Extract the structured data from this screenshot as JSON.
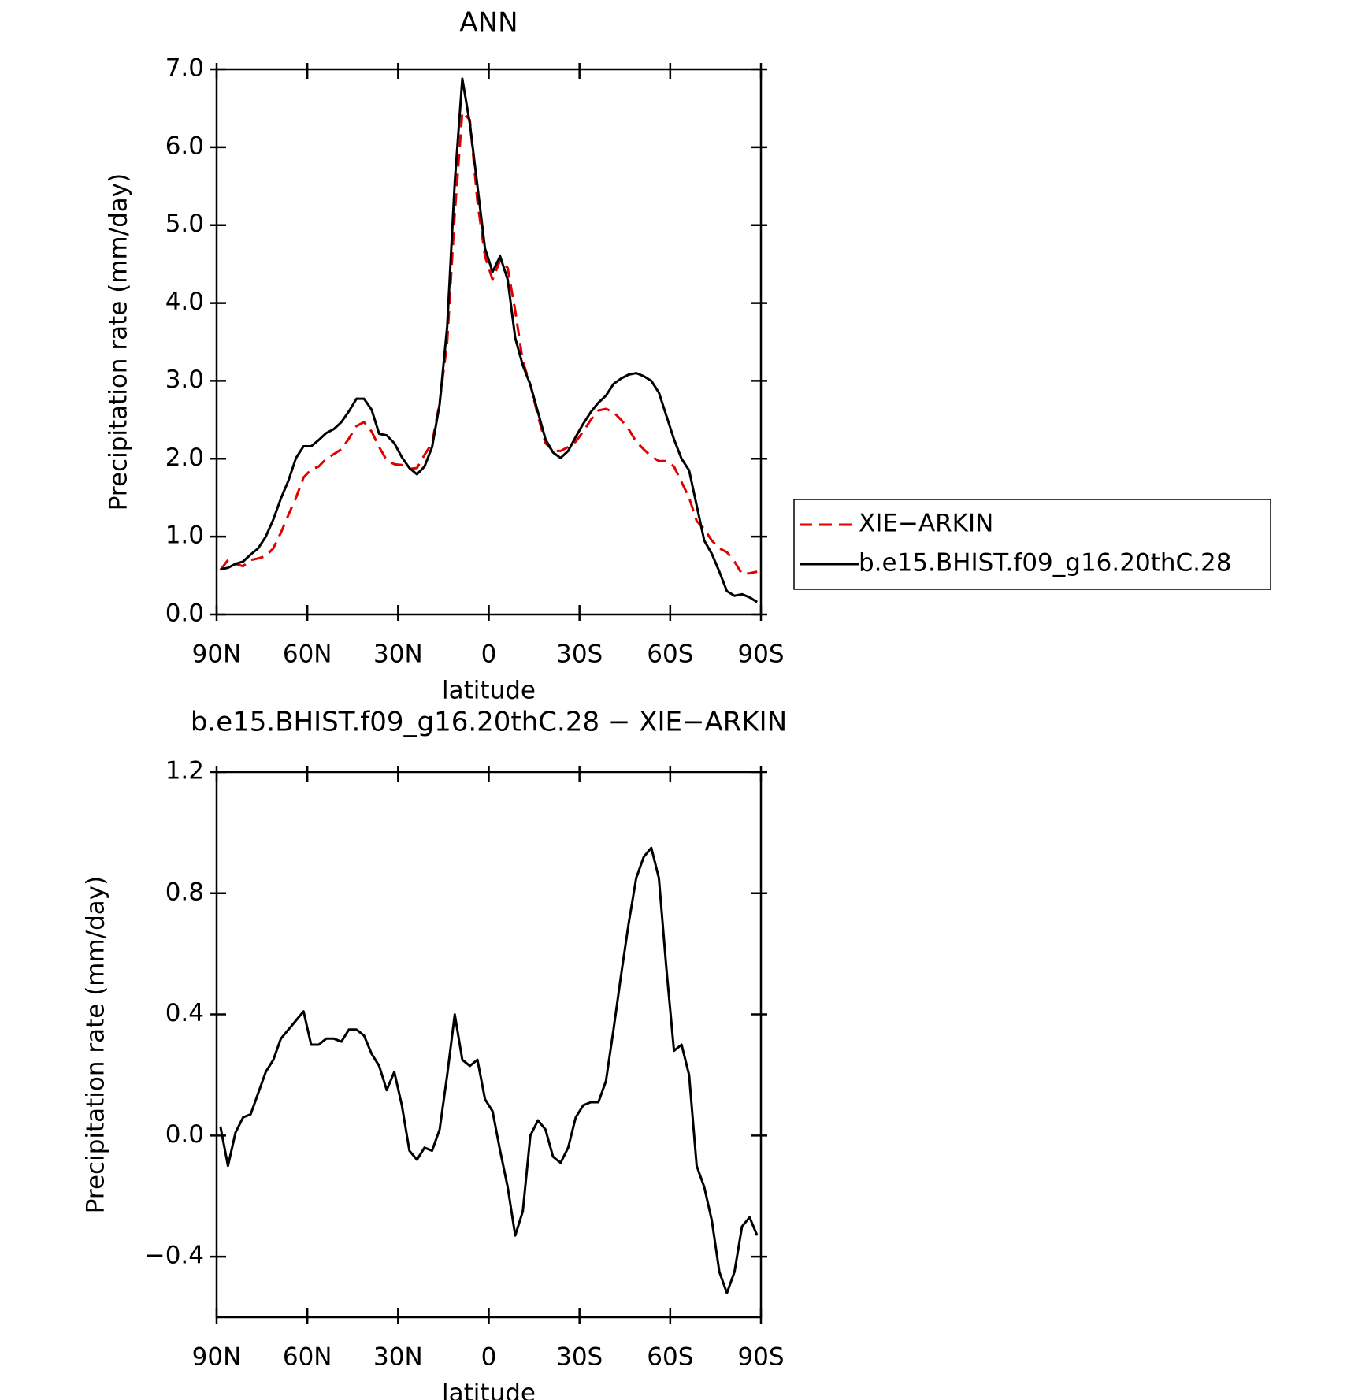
{
  "chart_data": [
    {
      "type": "line",
      "title": "ANN",
      "x_label": "latitude",
      "y_label": "Precipitation rate (mm/day)",
      "x": [
        88.75,
        86.25,
        83.75,
        81.25,
        78.75,
        76.25,
        73.75,
        71.25,
        68.75,
        66.25,
        63.75,
        61.25,
        58.75,
        56.25,
        53.75,
        51.25,
        48.75,
        46.25,
        43.75,
        41.25,
        38.75,
        36.25,
        33.75,
        31.25,
        28.75,
        26.25,
        23.75,
        21.25,
        18.75,
        16.25,
        13.75,
        11.25,
        8.75,
        6.25,
        3.75,
        1.25,
        -1.25,
        -3.75,
        -6.25,
        -8.75,
        -11.25,
        -13.75,
        -16.25,
        -18.75,
        -21.25,
        -23.75,
        -26.25,
        -28.75,
        -31.25,
        -33.75,
        -36.25,
        -38.75,
        -41.25,
        -43.75,
        -46.25,
        -48.75,
        -51.25,
        -53.75,
        -56.25,
        -58.75,
        -61.25,
        -63.75,
        -66.25,
        -68.75,
        -71.25,
        -73.75,
        -76.25,
        -78.75,
        -81.25,
        -83.75,
        -86.25,
        -88.75
      ],
      "xlim": [
        90,
        -90
      ],
      "xticks": [
        {
          "value": 90,
          "label": "90N"
        },
        {
          "value": 60,
          "label": "60N"
        },
        {
          "value": 30,
          "label": "30N"
        },
        0,
        {
          "value": -30,
          "label": "30S"
        },
        {
          "value": -60,
          "label": "60S"
        },
        {
          "value": -90,
          "label": "90S"
        }
      ],
      "ylim": [
        0,
        7
      ],
      "yticks": [
        {
          "value": 0,
          "label": "0.0"
        },
        {
          "value": 1,
          "label": "1.0"
        },
        {
          "value": 2,
          "label": "2.0"
        },
        {
          "value": 3,
          "label": "3.0"
        },
        {
          "value": 4,
          "label": "4.0"
        },
        {
          "value": 5,
          "label": "5.0"
        },
        {
          "value": 6,
          "label": "6.0"
        },
        {
          "value": 7,
          "label": "7.0"
        }
      ],
      "legend": "right",
      "series": [
        {
          "name": "XIE−ARKIN",
          "color": "#e00000",
          "dashed": true,
          "values": [
            0.57,
            0.7,
            0.65,
            0.62,
            0.7,
            0.72,
            0.75,
            0.85,
            1.05,
            1.28,
            1.5,
            1.76,
            1.86,
            1.9,
            2.0,
            2.06,
            2.12,
            2.26,
            2.42,
            2.47,
            2.35,
            2.15,
            1.98,
            1.93,
            1.92,
            1.87,
            1.88,
            2.05,
            2.2,
            2.72,
            3.5,
            5.15,
            6.45,
            6.35,
            5.3,
            4.6,
            4.3,
            4.55,
            4.45,
            3.9,
            3.25,
            2.95,
            2.55,
            2.2,
            2.1,
            2.1,
            2.15,
            2.22,
            2.35,
            2.5,
            2.62,
            2.64,
            2.6,
            2.5,
            2.38,
            2.22,
            2.12,
            2.03,
            1.97,
            1.97,
            1.9,
            1.7,
            1.5,
            1.2,
            1.1,
            0.95,
            0.85,
            0.8,
            0.68,
            0.52,
            0.53,
            0.55
          ]
        },
        {
          "name": "b.e15.BHIST.f09_g16.20thC.28",
          "color": "#000000",
          "dashed": false,
          "values": [
            0.58,
            0.6,
            0.65,
            0.68,
            0.77,
            0.85,
            1.0,
            1.22,
            1.49,
            1.72,
            2.01,
            2.16,
            2.16,
            2.24,
            2.33,
            2.38,
            2.47,
            2.61,
            2.77,
            2.77,
            2.63,
            2.32,
            2.3,
            2.2,
            2.02,
            1.88,
            1.8,
            1.9,
            2.15,
            2.7,
            3.7,
            5.55,
            6.88,
            6.3,
            5.5,
            4.7,
            4.4,
            4.6,
            4.3,
            3.55,
            3.2,
            2.95,
            2.6,
            2.25,
            2.08,
            2.01,
            2.1,
            2.28,
            2.45,
            2.6,
            2.72,
            2.81,
            2.96,
            3.03,
            3.08,
            3.1,
            3.06,
            3.0,
            2.85,
            2.55,
            2.25,
            2.0,
            1.85,
            1.4,
            0.95,
            0.78,
            0.55,
            0.3,
            0.24,
            0.26,
            0.22,
            0.16
          ]
        }
      ]
    },
    {
      "type": "line",
      "title": "b.e15.BHIST.f09_g16.20thC.28 − XIE−ARKIN",
      "x_label": "latitude",
      "y_label": "Precipitation rate (mm/day)",
      "x": [
        88.75,
        86.25,
        83.75,
        81.25,
        78.75,
        76.25,
        73.75,
        71.25,
        68.75,
        66.25,
        63.75,
        61.25,
        58.75,
        56.25,
        53.75,
        51.25,
        48.75,
        46.25,
        43.75,
        41.25,
        38.75,
        36.25,
        33.75,
        31.25,
        28.75,
        26.25,
        23.75,
        21.25,
        18.75,
        16.25,
        13.75,
        11.25,
        8.75,
        6.25,
        3.75,
        1.25,
        -1.25,
        -3.75,
        -6.25,
        -8.75,
        -11.25,
        -13.75,
        -16.25,
        -18.75,
        -21.25,
        -23.75,
        -26.25,
        -28.75,
        -31.25,
        -33.75,
        -36.25,
        -38.75,
        -41.25,
        -43.75,
        -46.25,
        -48.75,
        -51.25,
        -53.75,
        -56.25,
        -58.75,
        -61.25,
        -63.75,
        -66.25,
        -68.75,
        -71.25,
        -73.75,
        -76.25,
        -78.75,
        -81.25,
        -83.75,
        -86.25,
        -88.75
      ],
      "xlim": [
        90,
        -90
      ],
      "xticks": [
        {
          "value": 90,
          "label": "90N"
        },
        {
          "value": 60,
          "label": "60N"
        },
        {
          "value": 30,
          "label": "30N"
        },
        0,
        {
          "value": -30,
          "label": "30S"
        },
        {
          "value": -60,
          "label": "60S"
        },
        {
          "value": -90,
          "label": "90S"
        }
      ],
      "ylim": [
        -0.6,
        1.2
      ],
      "yticks": [
        {
          "value": -0.4,
          "label": "−0.4"
        },
        {
          "value": 0,
          "label": "0.0"
        },
        0.4,
        0.8,
        1.2
      ],
      "series": [
        {
          "color": "#000000",
          "dashed": false,
          "values": [
            0.03,
            -0.1,
            0.01,
            0.06,
            0.07,
            0.14,
            0.21,
            0.25,
            0.32,
            0.35,
            0.38,
            0.41,
            0.3,
            0.3,
            0.32,
            0.32,
            0.31,
            0.35,
            0.35,
            0.33,
            0.27,
            0.23,
            0.15,
            0.21,
            0.1,
            -0.05,
            -0.08,
            -0.04,
            -0.05,
            0.02,
            0.2,
            0.4,
            0.25,
            0.23,
            0.25,
            0.12,
            0.08,
            -0.05,
            -0.17,
            -0.33,
            -0.25,
            0.0,
            0.05,
            0.02,
            -0.07,
            -0.09,
            -0.04,
            0.06,
            0.1,
            0.11,
            0.11,
            0.18,
            0.35,
            0.53,
            0.7,
            0.85,
            0.92,
            0.95,
            0.85,
            0.55,
            0.28,
            0.3,
            0.2,
            -0.1,
            -0.17,
            -0.28,
            -0.45,
            -0.52,
            -0.45,
            -0.3,
            -0.27,
            -0.33
          ]
        }
      ]
    }
  ]
}
